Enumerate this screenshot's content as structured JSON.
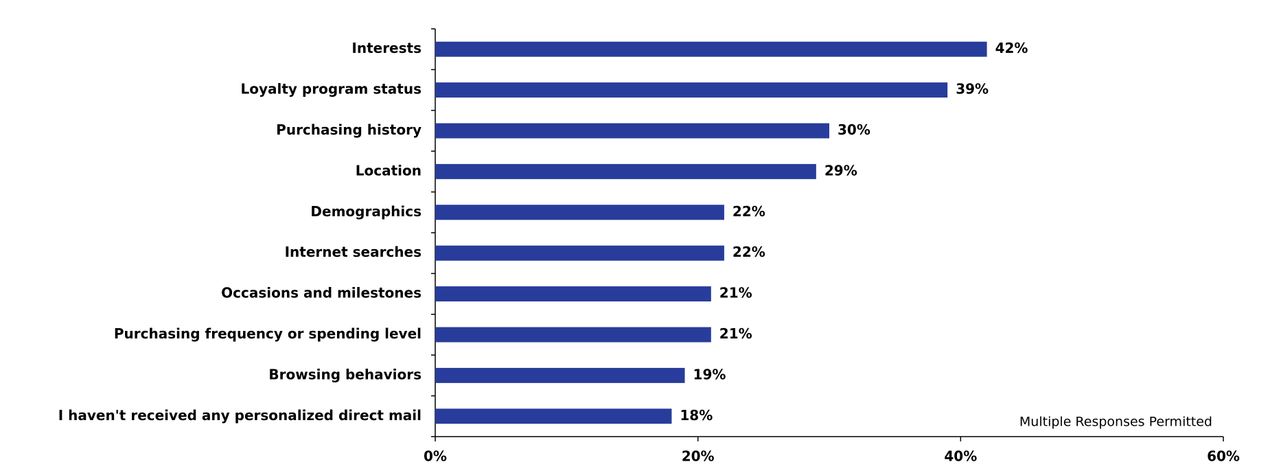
{
  "chart_data": {
    "type": "hbar",
    "categories": [
      "Interests",
      "Loyalty program status",
      "Purchasing history",
      "Location",
      "Demographics",
      "Internet searches",
      "Occasions and milestones",
      "Purchasing frequency or spending level",
      "Browsing behaviors",
      "I haven't received any personalized direct mail"
    ],
    "values": [
      42,
      39,
      30,
      29,
      22,
      22,
      21,
      21,
      19,
      18
    ],
    "value_labels": [
      "42%",
      "39%",
      "30%",
      "29%",
      "22%",
      "22%",
      "21%",
      "21%",
      "19%",
      "18%"
    ],
    "color": "#283c9b",
    "xlim": [
      0,
      60
    ],
    "xticks": [
      {
        "value": 0,
        "label": "0%"
      },
      {
        "value": 20,
        "label": "20%"
      },
      {
        "value": 40,
        "label": "40%"
      },
      {
        "value": 60,
        "label": "60%"
      }
    ],
    "annotation": "Multiple Responses Permitted",
    "grid": false
  }
}
